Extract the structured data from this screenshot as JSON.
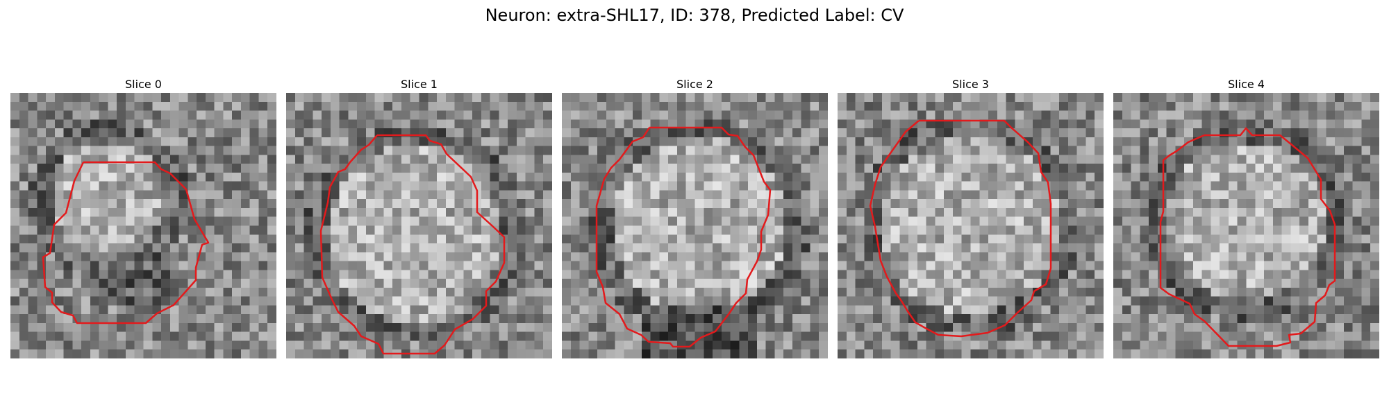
{
  "title": "Neuron: extra-SHL17, ID: 378, Predicted Label: CV",
  "slices": [
    {
      "label": "Slice 0"
    },
    {
      "label": "Slice 1"
    },
    {
      "label": "Slice 2"
    },
    {
      "label": "Slice 3"
    },
    {
      "label": "Slice 4"
    }
  ],
  "colors": {
    "contour": "#e31a1c",
    "background": "#ffffff"
  }
}
